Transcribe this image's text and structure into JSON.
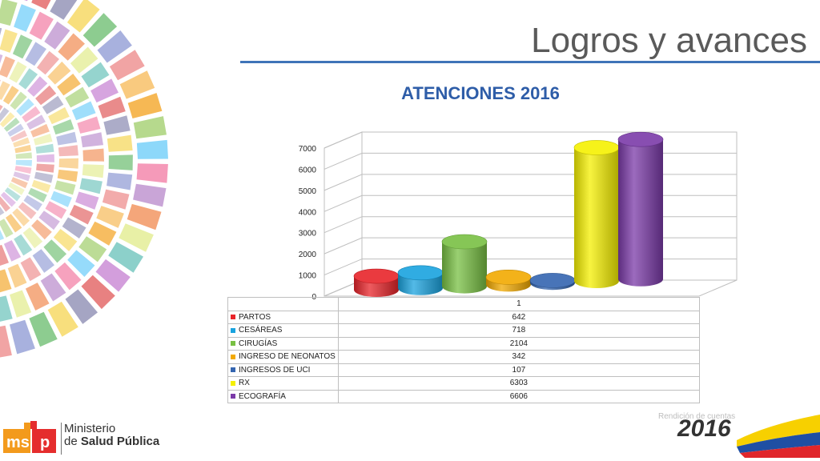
{
  "slide": {
    "title": "Logros y avances",
    "footer_small": "Rendición de cuentas",
    "footer_year": "2016",
    "logo_line1": "Ministerio",
    "logo_line2_pre": "de ",
    "logo_line2_bold": "Salud Pública"
  },
  "colors": {
    "title_rule": "#3f74b8",
    "chart_title": "#2e5da8"
  },
  "chart_data": {
    "type": "bar",
    "title": "ATENCIONES 2016",
    "categories": [
      "1"
    ],
    "series": [
      {
        "name": "PARTOS",
        "values": [
          642
        ],
        "color": "#e8242a"
      },
      {
        "name": "CESÁREAS",
        "values": [
          718
        ],
        "color": "#19a3df"
      },
      {
        "name": "CIRUGÍAS",
        "values": [
          2104
        ],
        "color": "#78c043"
      },
      {
        "name": "INGRESO DE NEONATOS",
        "values": [
          342
        ],
        "color": "#f2a900"
      },
      {
        "name": "INGRESOS DE UCI",
        "values": [
          107
        ],
        "color": "#3465b0"
      },
      {
        "name": "RX",
        "values": [
          6303
        ],
        "color": "#f5f000"
      },
      {
        "name": "ECOGRAFÍA",
        "values": [
          6606
        ],
        "color": "#7b3aa8"
      }
    ],
    "y_ticks": [
      "0",
      "1000",
      "2000",
      "3000",
      "4000",
      "5000",
      "6000",
      "7000"
    ],
    "ylim": [
      0,
      7000
    ],
    "grid": true,
    "legend": "data-table",
    "style": "3d-cylinder"
  }
}
